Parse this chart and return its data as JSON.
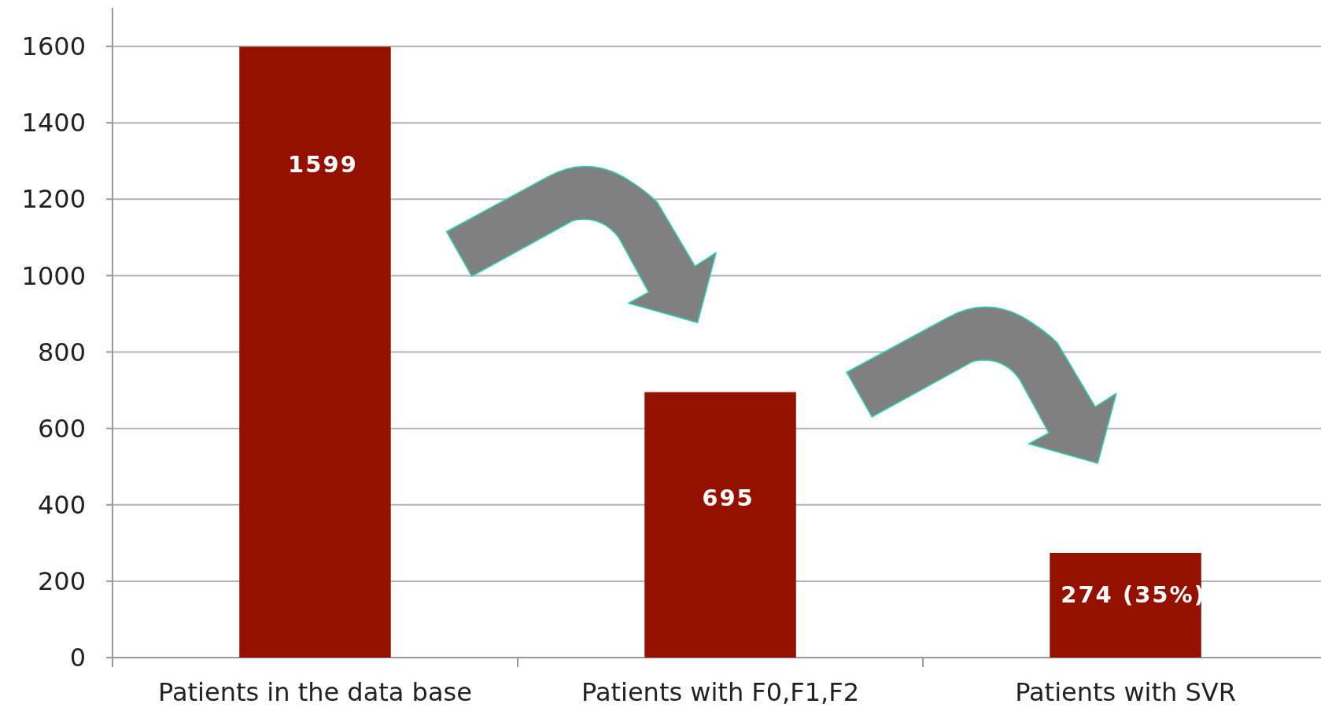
{
  "chart_data": {
    "type": "bar",
    "categories": [
      "Patients in the data base",
      "Patients with F0,F1,F2",
      "Patients with SVR"
    ],
    "values": [
      1599,
      695,
      274
    ],
    "color": "#941100",
    "value_labels": [
      "1599",
      "695",
      "274 (35%)"
    ],
    "ylim": [
      0,
      1600
    ],
    "yticks": [
      0,
      200,
      400,
      600,
      800,
      1000,
      1200,
      1400,
      1600
    ],
    "grid": "y"
  }
}
